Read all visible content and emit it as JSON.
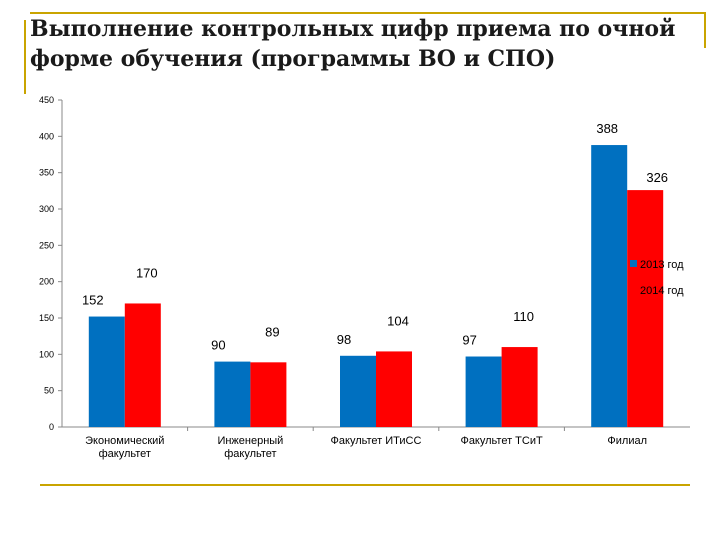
{
  "slide": {
    "title": "Выполнение контрольных цифр приема по очной форме обучения (программы ВО и СПО)"
  },
  "colors": {
    "series_2013": "#0070c0",
    "series_2014": "#ff0000",
    "axis": "#888888",
    "text": "#000000",
    "decoration": "#c9a400"
  },
  "chart_data": {
    "type": "bar",
    "title": "",
    "xlabel": "",
    "ylabel": "",
    "categories": [
      "Экономический факультет",
      "Инженерный факультет",
      "Факультет ИТиСС",
      "Факультет ТСиТ",
      "Филиал"
    ],
    "category_lines": [
      [
        "Экономический",
        "факультет"
      ],
      [
        "Инженерный",
        "факультет"
      ],
      [
        "Факультет ИТиСС"
      ],
      [
        "Факультет ТСиТ"
      ],
      [
        "Филиал"
      ]
    ],
    "series": [
      {
        "name": "2013 год",
        "values": [
          152,
          90,
          98,
          97,
          388
        ]
      },
      {
        "name": "2014 год",
        "values": [
          170,
          89,
          104,
          110,
          326
        ]
      }
    ],
    "ylim": [
      0,
      450
    ],
    "yticks": [
      0,
      50,
      100,
      150,
      200,
      250,
      300,
      350,
      400,
      450
    ],
    "grid": false,
    "legend": "right"
  }
}
